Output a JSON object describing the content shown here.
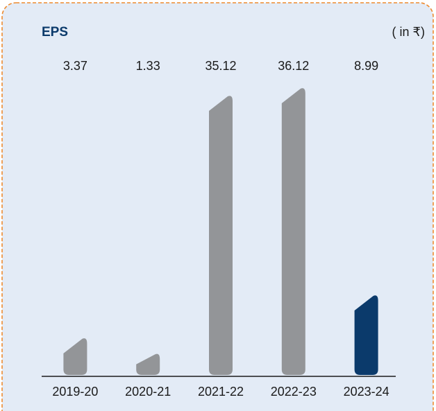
{
  "chart_data": {
    "type": "bar",
    "title": "EPS",
    "subtitle": "( in ₹)",
    "categories": [
      "2019-20",
      "2020-21",
      "2021-22",
      "2022-23",
      "2023-24"
    ],
    "values": [
      3.37,
      1.33,
      35.12,
      36.12,
      8.99
    ],
    "colors": [
      "#939598",
      "#939598",
      "#939598",
      "#939598",
      "#0b3a6b"
    ]
  }
}
